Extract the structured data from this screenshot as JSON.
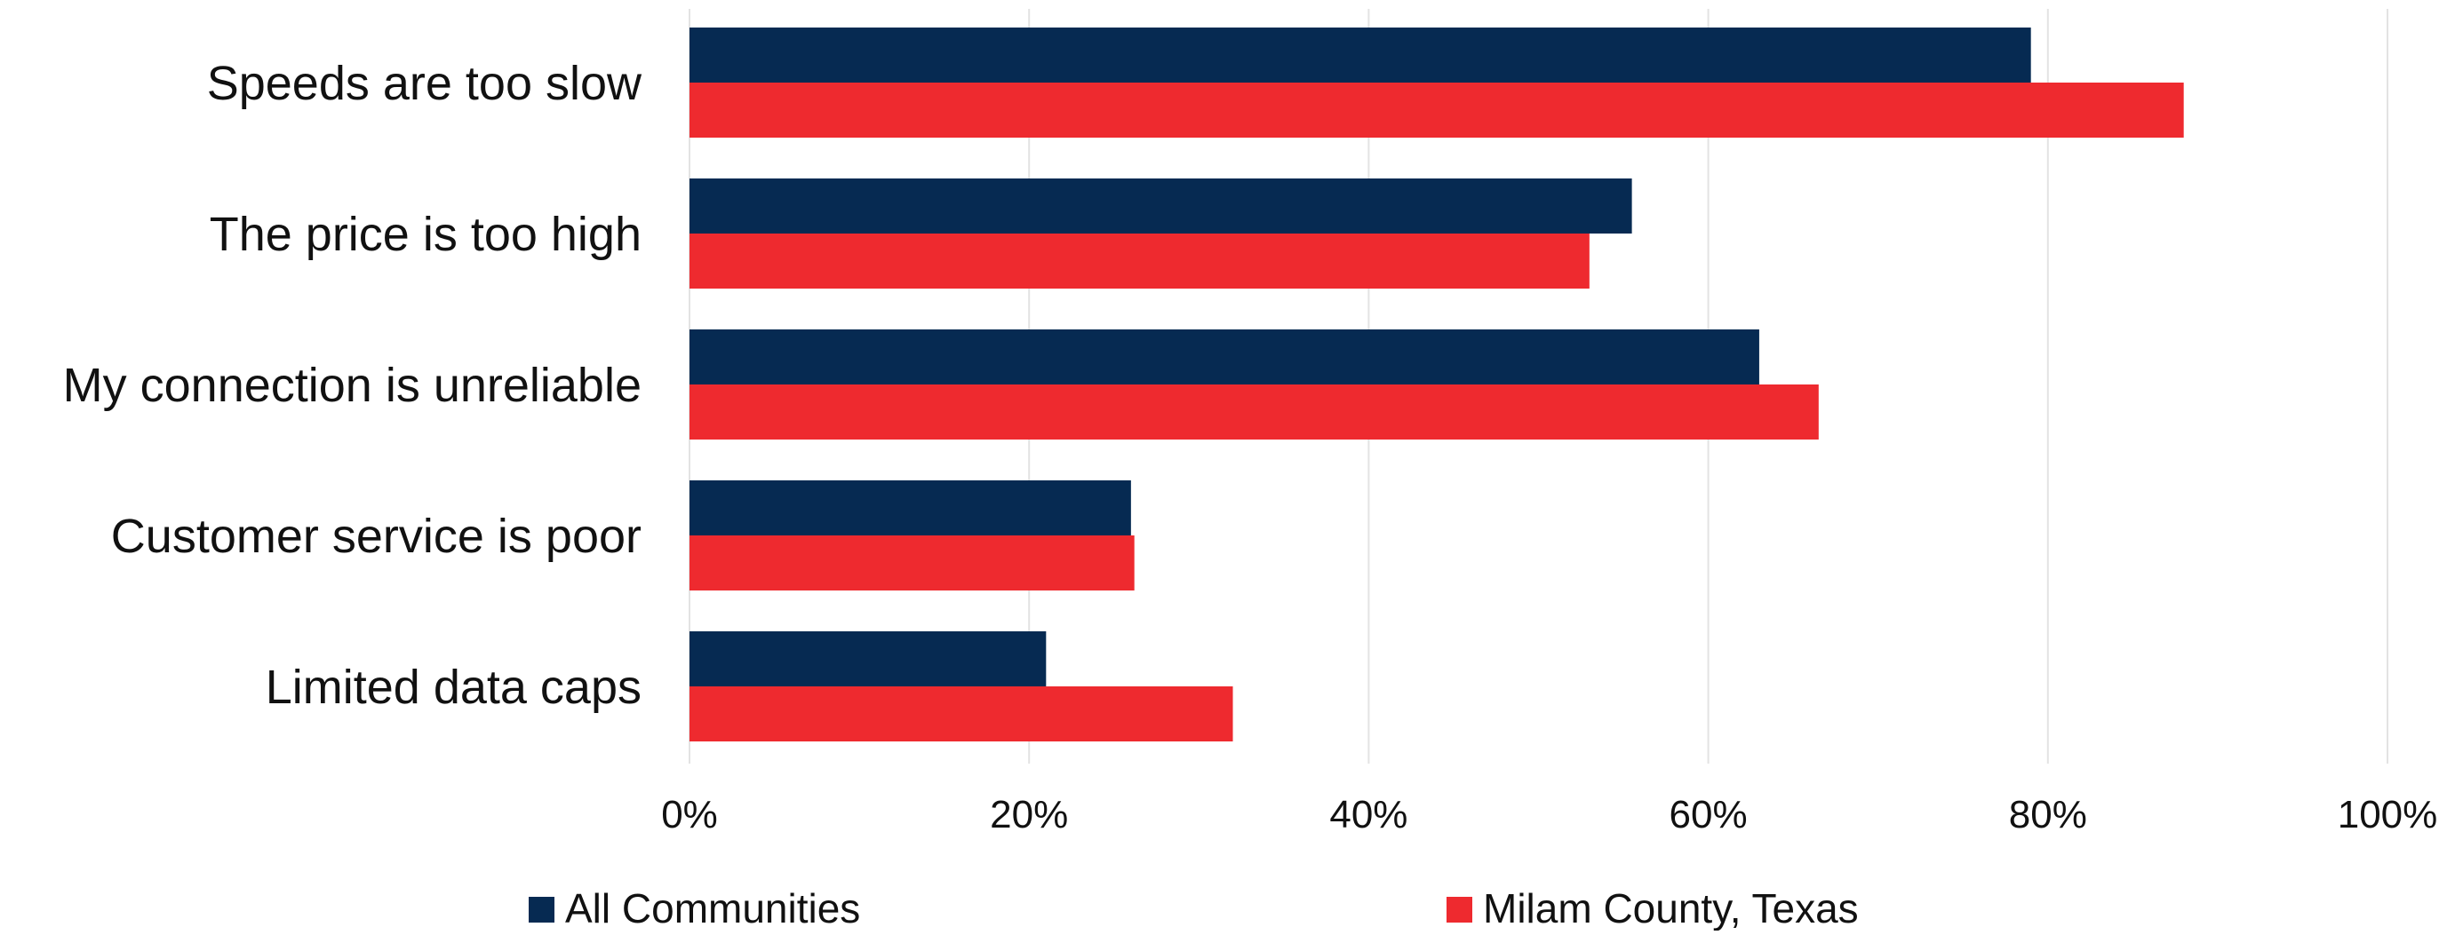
{
  "chart_data": {
    "type": "bar",
    "orientation": "horizontal",
    "categories": [
      "Speeds are too slow",
      "The price is too high",
      "My connection is unreliable",
      "Customer service is poor",
      "Limited data caps"
    ],
    "series": [
      {
        "name": "All Communities",
        "color": "#062a52",
        "values": [
          79,
          55.5,
          63,
          26,
          21
        ]
      },
      {
        "name": "Milam County, Texas",
        "color": "#ee2a2f",
        "values": [
          88,
          53,
          66.5,
          26.2,
          32
        ]
      }
    ],
    "xlim": [
      0,
      100
    ],
    "xticks": [
      0,
      20,
      40,
      60,
      80,
      100
    ],
    "tick_labels": [
      "0%",
      "20%",
      "40%",
      "60%",
      "80%",
      "100%"
    ],
    "value_format": "percent",
    "grid": "vertical",
    "legend": "bottom"
  }
}
